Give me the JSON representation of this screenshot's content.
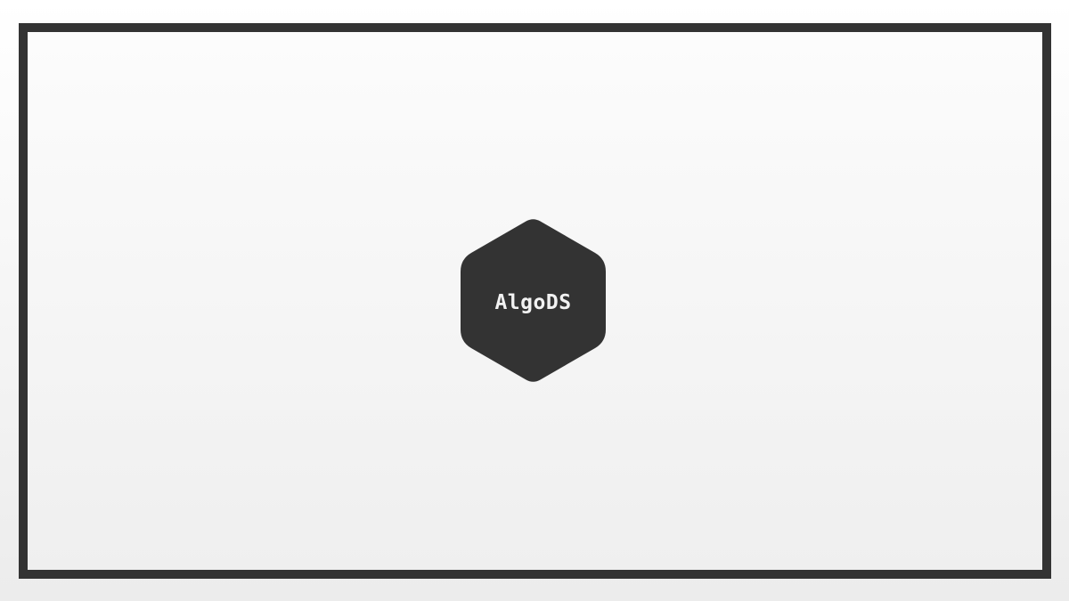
{
  "logo": {
    "text": "AlgoDS",
    "shape": "hexagon",
    "fill_color": "#333333",
    "text_color": "#f2f2f2"
  },
  "frame": {
    "border_color": "#333333"
  }
}
